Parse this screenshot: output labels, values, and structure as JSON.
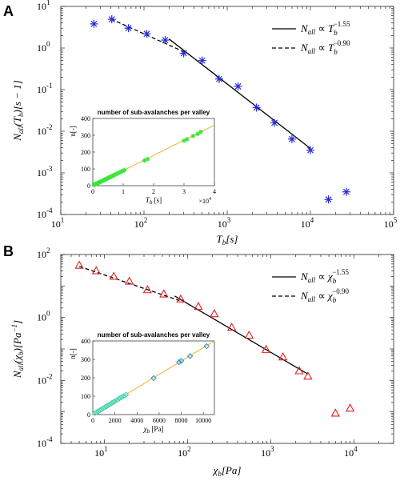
{
  "chart_data": [
    {
      "type": "scatter",
      "panel_label": "A",
      "log_x": true,
      "log_y": true,
      "xlim": [
        10,
        100000
      ],
      "ylim": [
        0.0001,
        10
      ],
      "x_ticks": [
        {
          "b": "10",
          "e": "1"
        },
        {
          "b": "10",
          "e": "2"
        },
        {
          "b": "10",
          "e": "3"
        },
        {
          "b": "10",
          "e": "4"
        },
        {
          "b": "10",
          "e": "5"
        }
      ],
      "y_ticks": [
        {
          "b": "10",
          "e": "-4"
        },
        {
          "b": "10",
          "e": "-3"
        },
        {
          "b": "10",
          "e": "-2"
        },
        {
          "b": "10",
          "e": "-1"
        },
        {
          "b": "10",
          "e": "0"
        },
        {
          "b": "10",
          "e": "1"
        }
      ],
      "xlabel": {
        "main": "T",
        "sub": "b",
        "rest": "[s]"
      },
      "ylabel": {
        "pre": "N",
        "sub": "all",
        "mid": "(T",
        "sub2": "b",
        "rest": ")[s − 1]"
      },
      "marker": "asterisk",
      "marker_color": "#2a2ad6",
      "points": [
        [
          25,
          3.8
        ],
        [
          41,
          4.9
        ],
        [
          65,
          3.0
        ],
        [
          108,
          2.2
        ],
        [
          180,
          1.55
        ],
        [
          300,
          0.75
        ],
        [
          500,
          0.5
        ],
        [
          800,
          0.18
        ],
        [
          1350,
          0.12
        ],
        [
          2250,
          0.037
        ],
        [
          3700,
          0.016
        ],
        [
          6000,
          0.0065
        ],
        [
          10000,
          0.0035
        ],
        [
          16500,
          0.00023
        ],
        [
          27000,
          0.00035
        ]
      ],
      "fit_lines": [
        {
          "style": "solid",
          "x": [
            200,
            10000
          ],
          "y": [
            1.65,
            0.00386
          ]
        },
        {
          "style": "dashed",
          "x": [
            40,
            350
          ],
          "y": [
            5.0,
            0.71
          ]
        }
      ],
      "legend": [
        {
          "style": "solid",
          "lhs": "N",
          "lhs_sub": "all",
          "rel": "∝",
          "var": "T",
          "var_sub": "b",
          "exp": "−1.55"
        },
        {
          "style": "dashed",
          "lhs": "N",
          "lhs_sub": "all",
          "rel": "∝",
          "var": "T",
          "var_sub": "b",
          "exp": "−0.90"
        }
      ],
      "legend_position": "top-right",
      "inset": {
        "title": "number of sub-avalanches per valley",
        "xlim": [
          0,
          40000
        ],
        "ylim": [
          0,
          400
        ],
        "x_ticks": [
          "0",
          "1",
          "2",
          "3",
          "4"
        ],
        "x_multiplier": "×10",
        "x_multiplier_exp": "4",
        "y_ticks": [
          "0",
          "100",
          "200",
          "300",
          "400"
        ],
        "xlabel": {
          "main": "T",
          "sub": "b",
          "rest": " [s]"
        },
        "ylabel": "n[-]",
        "marker": "asterisk",
        "marker_color": "#39e639",
        "fit_color": "#f2b233",
        "fit": {
          "x": [
            0,
            40000
          ],
          "y": [
            0,
            360
          ]
        },
        "points": [
          [
            300,
            4
          ],
          [
            600,
            7
          ],
          [
            900,
            10
          ],
          [
            1200,
            12
          ],
          [
            1500,
            14
          ],
          [
            1800,
            17
          ],
          [
            2100,
            20
          ],
          [
            2400,
            22
          ],
          [
            2700,
            25
          ],
          [
            3000,
            27
          ],
          [
            3300,
            30
          ],
          [
            3600,
            33
          ],
          [
            3900,
            36
          ],
          [
            4200,
            38
          ],
          [
            4500,
            41
          ],
          [
            4800,
            43
          ],
          [
            5100,
            46
          ],
          [
            5400,
            49
          ],
          [
            5700,
            51
          ],
          [
            6000,
            54
          ],
          [
            6300,
            57
          ],
          [
            6600,
            59
          ],
          [
            6900,
            62
          ],
          [
            7200,
            65
          ],
          [
            7600,
            68
          ],
          [
            8000,
            72
          ],
          [
            8400,
            75
          ],
          [
            8800,
            79
          ],
          [
            9200,
            82
          ],
          [
            9600,
            86
          ],
          [
            10000,
            89
          ],
          [
            10400,
            93
          ],
          [
            17000,
            150
          ],
          [
            18000,
            158
          ],
          [
            30000,
            268
          ],
          [
            31000,
            276
          ],
          [
            33000,
            296
          ],
          [
            34500,
            308
          ],
          [
            35500,
            320
          ]
        ]
      }
    },
    {
      "type": "scatter",
      "panel_label": "B",
      "log_x": true,
      "log_y": true,
      "xlim": [
        3,
        30000
      ],
      "ylim": [
        0.0001,
        100
      ],
      "x_ticks": [
        {
          "b": "10",
          "e": "1"
        },
        {
          "b": "10",
          "e": "2"
        },
        {
          "b": "10",
          "e": "3"
        },
        {
          "b": "10",
          "e": "4"
        }
      ],
      "y_ticks": [
        {
          "b": "10",
          "e": "-4"
        },
        {
          "b": "10",
          "e": "-2"
        },
        {
          "b": "10",
          "e": "0"
        },
        {
          "b": "10",
          "e": "2"
        }
      ],
      "xlabel": {
        "main": "χ",
        "sub": "b",
        "rest": "[Pa]"
      },
      "ylabel": {
        "pre": "N",
        "sub": "all",
        "mid": "(χ",
        "sub2": "b",
        "rest": ")[Pa",
        "sup": "−1",
        "end": "]"
      },
      "marker": "triangle",
      "marker_color": "#e02020",
      "points": [
        [
          5,
          45
        ],
        [
          8,
          30
        ],
        [
          13,
          20
        ],
        [
          20,
          14
        ],
        [
          33,
          7.5
        ],
        [
          52,
          5.5
        ],
        [
          83,
          3.8
        ],
        [
          135,
          2.2
        ],
        [
          210,
          1.3
        ],
        [
          340,
          0.48
        ],
        [
          550,
          0.27
        ],
        [
          880,
          0.095
        ],
        [
          1400,
          0.055
        ],
        [
          2200,
          0.02
        ],
        [
          2800,
          0.0135
        ],
        [
          6000,
          0.0009
        ],
        [
          9000,
          0.0013
        ]
      ],
      "fit_lines": [
        {
          "style": "solid",
          "x": [
            70,
            2800
          ],
          "y": [
            4.8,
            0.0159
          ]
        },
        {
          "style": "dashed",
          "x": [
            5,
            80
          ],
          "y": [
            42,
            3.45
          ]
        }
      ],
      "legend": [
        {
          "style": "solid",
          "lhs": "N",
          "lhs_sub": "all",
          "rel": "∝",
          "var": "χ",
          "var_sub": "b",
          "exp": "−1.55"
        },
        {
          "style": "dashed",
          "lhs": "N",
          "lhs_sub": "all",
          "rel": "∝",
          "var": "χ",
          "var_sub": "b",
          "exp": "−0.90"
        }
      ],
      "legend_position": "top-right",
      "inset": {
        "title": "number of sub-avalanches per valley",
        "xlim": [
          0,
          11000
        ],
        "ylim": [
          0,
          400
        ],
        "x_ticks": [
          "0",
          "2000",
          "4000",
          "6000",
          "8000",
          "10000"
        ],
        "x_tick_values": [
          0,
          2000,
          4000,
          6000,
          8000,
          10000
        ],
        "y_ticks": [
          "0",
          "100",
          "200",
          "300",
          "400"
        ],
        "xlabel": {
          "main": "χ",
          "sub": "b",
          "rest": " [Pa]"
        },
        "ylabel": "n[-]",
        "marker": "diamond",
        "marker_color_low": "#1f8fd0",
        "marker_color_high": "#3ad6b0",
        "fit_color": "#f2b233",
        "fit": {
          "x": [
            0,
            11000
          ],
          "y": [
            0,
            400
          ]
        },
        "points": [
          [
            200,
            8
          ],
          [
            350,
            13
          ],
          [
            500,
            18
          ],
          [
            650,
            24
          ],
          [
            800,
            29
          ],
          [
            950,
            35
          ],
          [
            1100,
            40
          ],
          [
            1250,
            45
          ],
          [
            1400,
            51
          ],
          [
            1550,
            56
          ],
          [
            1700,
            62
          ],
          [
            1850,
            67
          ],
          [
            2000,
            72
          ],
          [
            2200,
            80
          ],
          [
            2400,
            87
          ],
          [
            2600,
            94
          ],
          [
            2800,
            101
          ],
          [
            3000,
            108
          ],
          [
            5500,
            198
          ],
          [
            7800,
            285
          ],
          [
            8000,
            292
          ],
          [
            8800,
            318
          ],
          [
            10300,
            372
          ]
        ]
      }
    }
  ]
}
